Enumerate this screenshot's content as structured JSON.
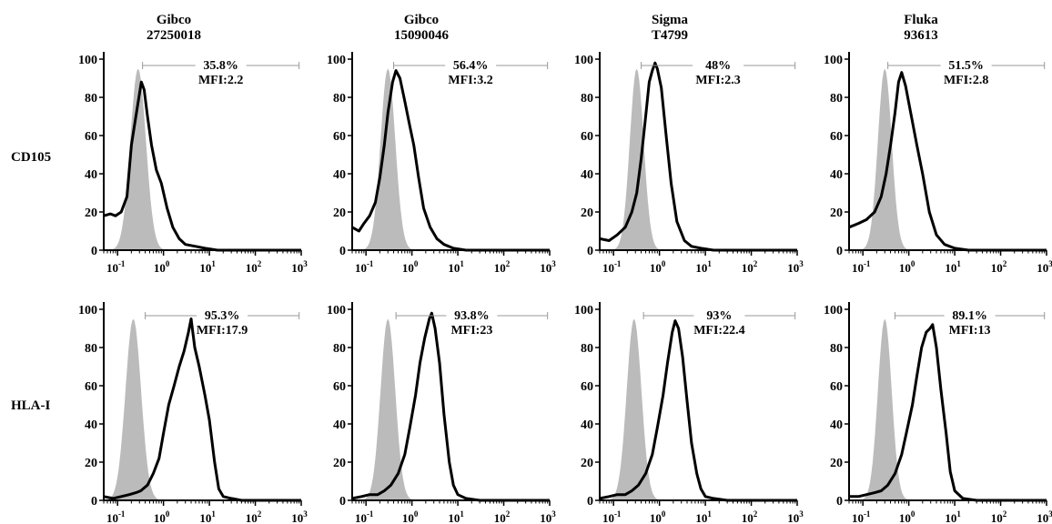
{
  "columns": [
    {
      "line1": "Gibco",
      "line2": "27250018"
    },
    {
      "line1": "Gibco",
      "line2": "15090046"
    },
    {
      "line1": "Sigma",
      "line2": "T4799"
    },
    {
      "line1": "Fluka",
      "line2": "93613"
    }
  ],
  "rows": [
    {
      "label": "CD105"
    },
    {
      "label": "HLA-I"
    }
  ],
  "colors": {
    "isotype_fill": "#bbbbbb",
    "sample_line": "#000000",
    "gate_line": "#999999"
  },
  "chart_data": {
    "type": "area",
    "x_scale": "log",
    "xlim": [
      0.05,
      1000
    ],
    "ylim": [
      0,
      100
    ],
    "y_ticks": [
      "0",
      "20",
      "40",
      "60",
      "80",
      "100"
    ],
    "x_ticks": [
      {
        "base": "10",
        "exp": "-1"
      },
      {
        "base": "10",
        "exp": "0"
      },
      {
        "base": "10",
        "exp": "1"
      },
      {
        "base": "10",
        "exp": "2"
      },
      {
        "base": "10",
        "exp": "3"
      }
    ],
    "panels": [
      {
        "row": 0,
        "col": 0,
        "percent": "35.8%",
        "mfi": "MFI:2.2",
        "gate": [
          0.35,
          900
        ],
        "isotype": {
          "peak_x": 0.28,
          "peak_y": 95,
          "sigma": 0.17
        },
        "sample": {
          "x": [
            0.05,
            0.07,
            0.09,
            0.12,
            0.16,
            0.2,
            0.25,
            0.3,
            0.33,
            0.38,
            0.45,
            0.55,
            0.7,
            0.9,
            1.2,
            1.6,
            2.2,
            3,
            5,
            8,
            15,
            40,
            100,
            1000
          ],
          "y": [
            18,
            19,
            18,
            20,
            28,
            55,
            70,
            82,
            88,
            84,
            70,
            55,
            42,
            35,
            22,
            12,
            6,
            3,
            2,
            1,
            0,
            0,
            0,
            0
          ]
        }
      },
      {
        "row": 0,
        "col": 1,
        "percent": "56.4%",
        "mfi": "MFI:3.2",
        "gate": [
          0.4,
          900
        ],
        "isotype": {
          "peak_x": 0.3,
          "peak_y": 95,
          "sigma": 0.16
        },
        "sample": {
          "x": [
            0.05,
            0.07,
            0.09,
            0.12,
            0.16,
            0.2,
            0.25,
            0.3,
            0.38,
            0.45,
            0.55,
            0.7,
            0.9,
            1.1,
            1.4,
            1.8,
            2.5,
            3.5,
            5,
            8,
            15,
            40,
            100,
            1000
          ],
          "y": [
            12,
            10,
            14,
            18,
            25,
            38,
            55,
            72,
            88,
            94,
            90,
            78,
            65,
            55,
            38,
            22,
            12,
            6,
            3,
            1,
            0,
            0,
            0,
            0
          ]
        }
      },
      {
        "row": 0,
        "col": 2,
        "percent": "48%",
        "mfi": "MFI:2.3",
        "gate": [
          0.4,
          900
        ],
        "isotype": {
          "peak_x": 0.32,
          "peak_y": 95,
          "sigma": 0.15
        },
        "sample": {
          "x": [
            0.05,
            0.08,
            0.12,
            0.18,
            0.25,
            0.32,
            0.4,
            0.5,
            0.6,
            0.7,
            0.8,
            0.9,
            1.1,
            1.4,
            1.8,
            2.4,
            3.5,
            5,
            8,
            15,
            40,
            100,
            1000
          ],
          "y": [
            6,
            5,
            8,
            12,
            20,
            30,
            48,
            70,
            88,
            94,
            98,
            95,
            85,
            60,
            35,
            15,
            5,
            2,
            1,
            0,
            0,
            0,
            0
          ]
        }
      },
      {
        "row": 0,
        "col": 3,
        "percent": "51.5%",
        "mfi": "MFI:2.8",
        "gate": [
          0.35,
          900
        ],
        "isotype": {
          "peak_x": 0.3,
          "peak_y": 95,
          "sigma": 0.15
        },
        "sample": {
          "x": [
            0.05,
            0.08,
            0.12,
            0.18,
            0.25,
            0.32,
            0.4,
            0.5,
            0.6,
            0.7,
            0.85,
            1.1,
            1.5,
            2,
            2.8,
            4,
            6,
            10,
            20,
            50,
            100,
            1000
          ],
          "y": [
            12,
            14,
            16,
            20,
            28,
            40,
            55,
            72,
            88,
            93,
            86,
            72,
            55,
            40,
            20,
            8,
            3,
            1,
            0,
            0,
            0,
            0
          ]
        }
      },
      {
        "row": 1,
        "col": 0,
        "percent": "95.3%",
        "mfi": "MFI:17.9",
        "gate": [
          0.4,
          900
        ],
        "isotype": {
          "peak_x": 0.22,
          "peak_y": 95,
          "sigma": 0.17
        },
        "sample": {
          "x": [
            0.05,
            0.08,
            0.12,
            0.18,
            0.25,
            0.32,
            0.45,
            0.6,
            0.8,
            1,
            1.3,
            1.7,
            2.2,
            2.8,
            3.5,
            4,
            4.8,
            6,
            8,
            10,
            13,
            16,
            20,
            30,
            50,
            100,
            1000
          ],
          "y": [
            2,
            1,
            2,
            3,
            4,
            5,
            8,
            14,
            22,
            35,
            50,
            60,
            70,
            78,
            88,
            95,
            80,
            70,
            55,
            42,
            20,
            6,
            2,
            1,
            0,
            0,
            0
          ]
        }
      },
      {
        "row": 1,
        "col": 1,
        "percent": "93.8%",
        "mfi": "MFI:23",
        "gate": [
          0.45,
          900
        ],
        "isotype": {
          "peak_x": 0.3,
          "peak_y": 95,
          "sigma": 0.16
        },
        "sample": {
          "x": [
            0.05,
            0.08,
            0.12,
            0.18,
            0.25,
            0.35,
            0.5,
            0.7,
            0.9,
            1.2,
            1.5,
            1.9,
            2.4,
            2.7,
            3.2,
            4,
            5,
            6.5,
            8,
            10,
            15,
            30,
            100,
            1000
          ],
          "y": [
            1,
            2,
            3,
            3,
            5,
            8,
            14,
            24,
            38,
            55,
            72,
            85,
            95,
            98,
            90,
            72,
            45,
            20,
            8,
            3,
            1,
            0,
            0,
            0
          ]
        }
      },
      {
        "row": 1,
        "col": 2,
        "percent": "93%",
        "mfi": "MFI:22.4",
        "gate": [
          0.45,
          900
        ],
        "isotype": {
          "peak_x": 0.28,
          "peak_y": 95,
          "sigma": 0.16
        },
        "sample": {
          "x": [
            0.05,
            0.08,
            0.12,
            0.18,
            0.25,
            0.35,
            0.5,
            0.7,
            0.9,
            1.2,
            1.5,
            1.9,
            2.2,
            2.6,
            3.2,
            4,
            5,
            6.5,
            8,
            10,
            15,
            30,
            100,
            1000
          ],
          "y": [
            1,
            2,
            3,
            3,
            5,
            8,
            14,
            24,
            38,
            55,
            72,
            88,
            94,
            90,
            75,
            52,
            30,
            14,
            6,
            2,
            1,
            0,
            0,
            0
          ]
        }
      },
      {
        "row": 1,
        "col": 3,
        "percent": "89.1%",
        "mfi": "MFI:13",
        "gate": [
          0.5,
          900
        ],
        "isotype": {
          "peak_x": 0.3,
          "peak_y": 95,
          "sigma": 0.15
        },
        "sample": {
          "x": [
            0.05,
            0.08,
            0.12,
            0.18,
            0.25,
            0.35,
            0.5,
            0.7,
            0.9,
            1.2,
            1.5,
            1.9,
            2.4,
            2.9,
            3.3,
            4,
            5,
            6.5,
            8,
            10,
            15,
            30,
            100,
            1000
          ],
          "y": [
            2,
            2,
            3,
            4,
            5,
            8,
            14,
            24,
            36,
            50,
            65,
            80,
            88,
            90,
            92,
            80,
            58,
            35,
            15,
            5,
            1,
            0,
            0,
            0
          ]
        }
      }
    ]
  }
}
